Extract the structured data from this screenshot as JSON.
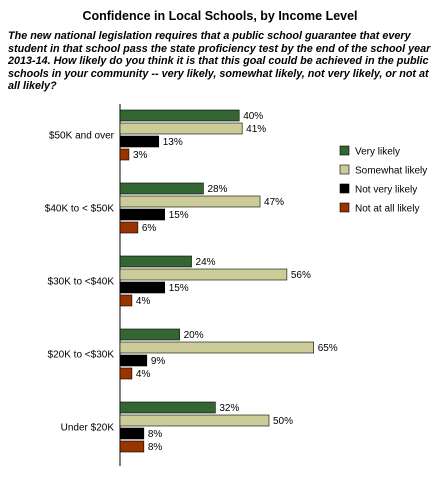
{
  "chart_data": {
    "type": "bar",
    "orientation": "horizontal",
    "title": "Confidence in Local Schools, by Income Level",
    "subtitle": "The new national legislation requires that a public school guarantee that every student in that school pass the state proficiency test by the end of the school year 2013-14. How likely do you think it is that this goal could be achieved in the public schools in your community -- very likely, somewhat likely, not very likely, or not at all likely?",
    "categories": [
      "$50K and over",
      "$40K to < $50K",
      "$30K to <$40K",
      "$20K to <$30K",
      "Under $20K"
    ],
    "series": [
      {
        "name": "Very likely",
        "color": "#336633",
        "values": [
          40,
          28,
          24,
          20,
          32
        ]
      },
      {
        "name": "Somewhat likely",
        "color": "#cccc99",
        "values": [
          41,
          47,
          56,
          65,
          50
        ]
      },
      {
        "name": "Not very likely",
        "color": "#000000",
        "values": [
          13,
          15,
          15,
          9,
          8
        ]
      },
      {
        "name": "Not at all likely",
        "color": "#993300",
        "values": [
          3,
          6,
          4,
          4,
          8
        ]
      }
    ],
    "value_suffix": "%",
    "xlim": [
      0,
      100
    ],
    "grid": false,
    "legend_position": "right"
  }
}
